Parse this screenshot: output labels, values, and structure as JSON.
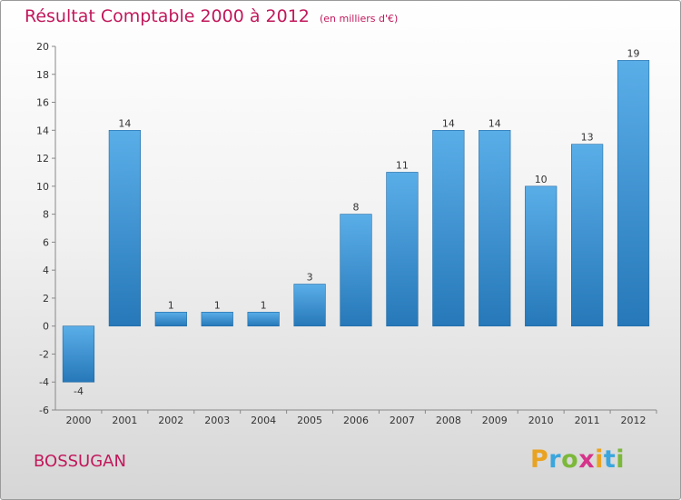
{
  "header": {
    "title": "Résultat Comptable 2000 à 2012",
    "unit": "(en milliers d'€)"
  },
  "commune": "BOSSUGAN",
  "brand": {
    "letters": [
      "P",
      "r",
      "o",
      "x",
      "i",
      "t",
      "i"
    ],
    "colors": [
      "#e9a321",
      "#3aa6dd",
      "#7cb83a",
      "#d6338b",
      "#e9a321",
      "#3aa6dd",
      "#7cb83a"
    ]
  },
  "colors": {
    "bar_top": "#5aaee8",
    "bar_bottom": "#2678b8",
    "title": "#c2185b"
  },
  "chart_data": {
    "type": "bar",
    "title": "Résultat Comptable 2000 à 2012",
    "categories": [
      "2000",
      "2001",
      "2002",
      "2003",
      "2004",
      "2005",
      "2006",
      "2007",
      "2008",
      "2009",
      "2010",
      "2011",
      "2012"
    ],
    "values": [
      -4,
      14,
      1,
      1,
      1,
      3,
      8,
      11,
      14,
      14,
      10,
      13,
      19
    ],
    "ylim": [
      -6,
      20
    ],
    "yticks": [
      -6,
      -4,
      -2,
      0,
      2,
      4,
      6,
      8,
      10,
      12,
      14,
      16,
      18,
      20
    ],
    "grid": false,
    "legend": "none"
  }
}
